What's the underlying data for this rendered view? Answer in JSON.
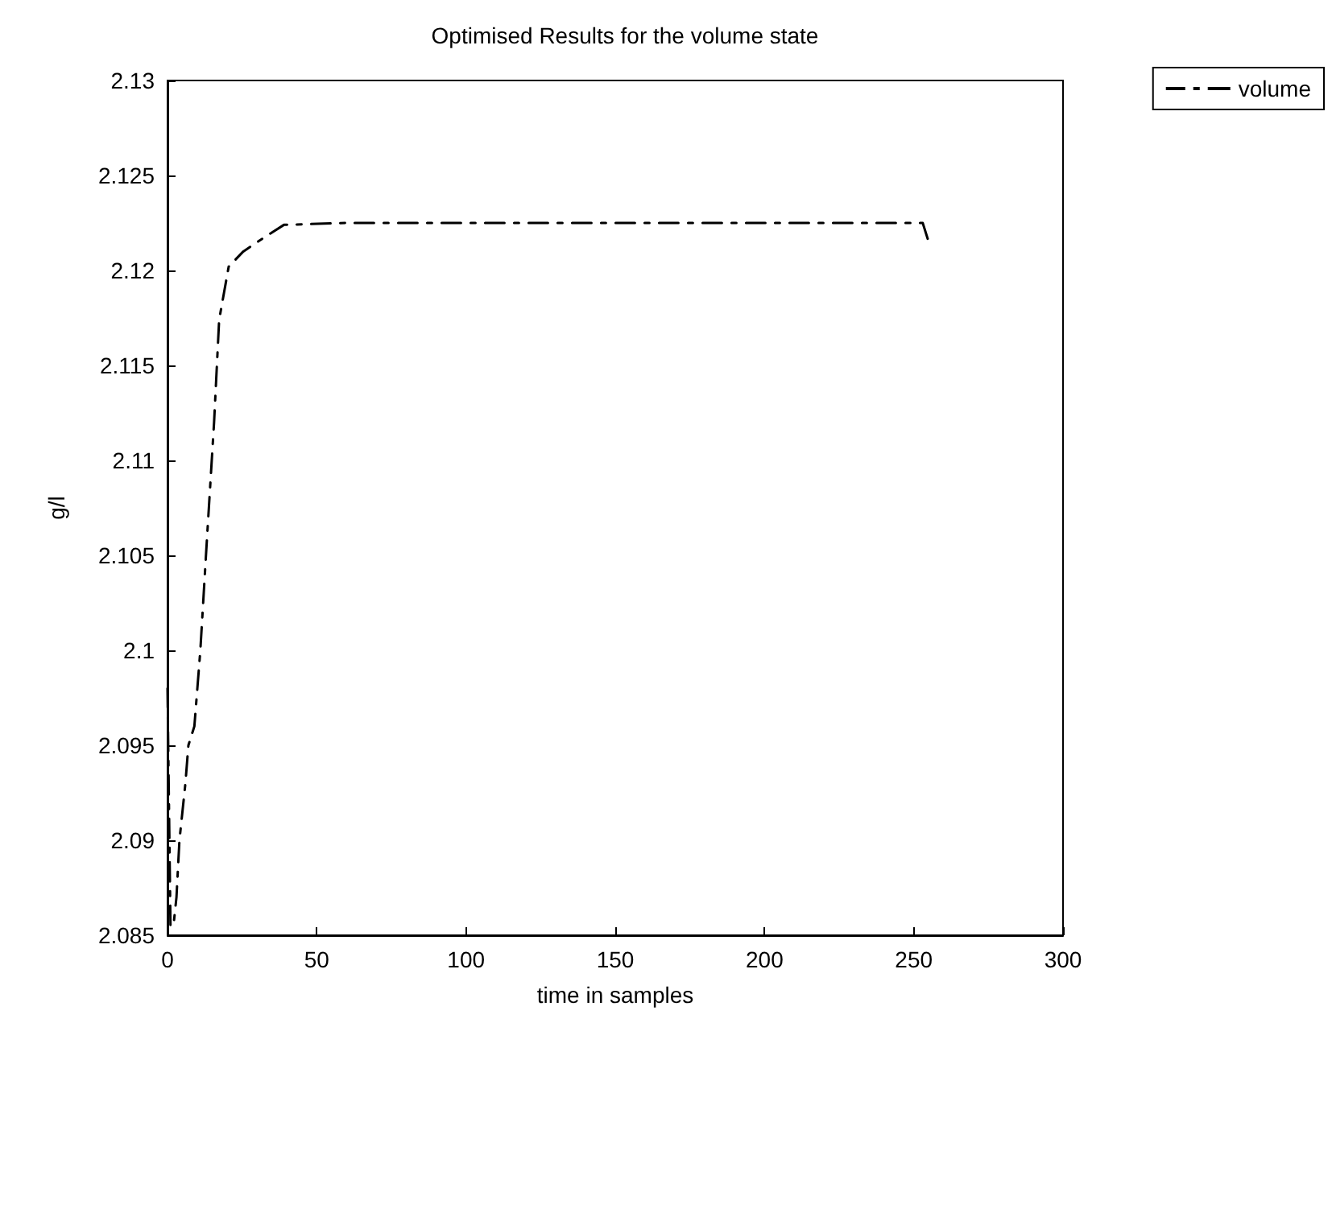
{
  "chart_data": {
    "type": "line",
    "title": "Optimised Results for the volume state",
    "xlabel": "time in samples",
    "ylabel": "g/l",
    "series": [
      {
        "name": "volume",
        "color": "#000000",
        "x": [
          0,
          1,
          2,
          3,
          4,
          5,
          6,
          7,
          8,
          9,
          11,
          13,
          15.6,
          17.3,
          20.5,
          25.4,
          33,
          39,
          60,
          100,
          150,
          200,
          250,
          253,
          255
        ],
        "values": [
          2.098,
          2.0855,
          2.0855,
          2.087,
          2.09,
          2.0915,
          2.093,
          2.095,
          2.0955,
          2.096,
          2.1,
          2.1053,
          2.112,
          2.1174,
          2.1202,
          2.121,
          2.1218,
          2.1224,
          2.1225,
          2.1225,
          2.1225,
          2.1225,
          2.1225,
          2.1225,
          2.1215
        ]
      }
    ],
    "xlim": [
      0,
      300
    ],
    "xticks": [
      0,
      50,
      100,
      150,
      200,
      250,
      300
    ],
    "ylim": [
      2.085,
      2.13
    ],
    "yticks": [
      2.085,
      2.09,
      2.095,
      2.1,
      2.105,
      2.11,
      2.115,
      2.12,
      2.125,
      2.13
    ],
    "grid": false,
    "legend": "top right",
    "marker": "none",
    "line_style": "dashed"
  }
}
